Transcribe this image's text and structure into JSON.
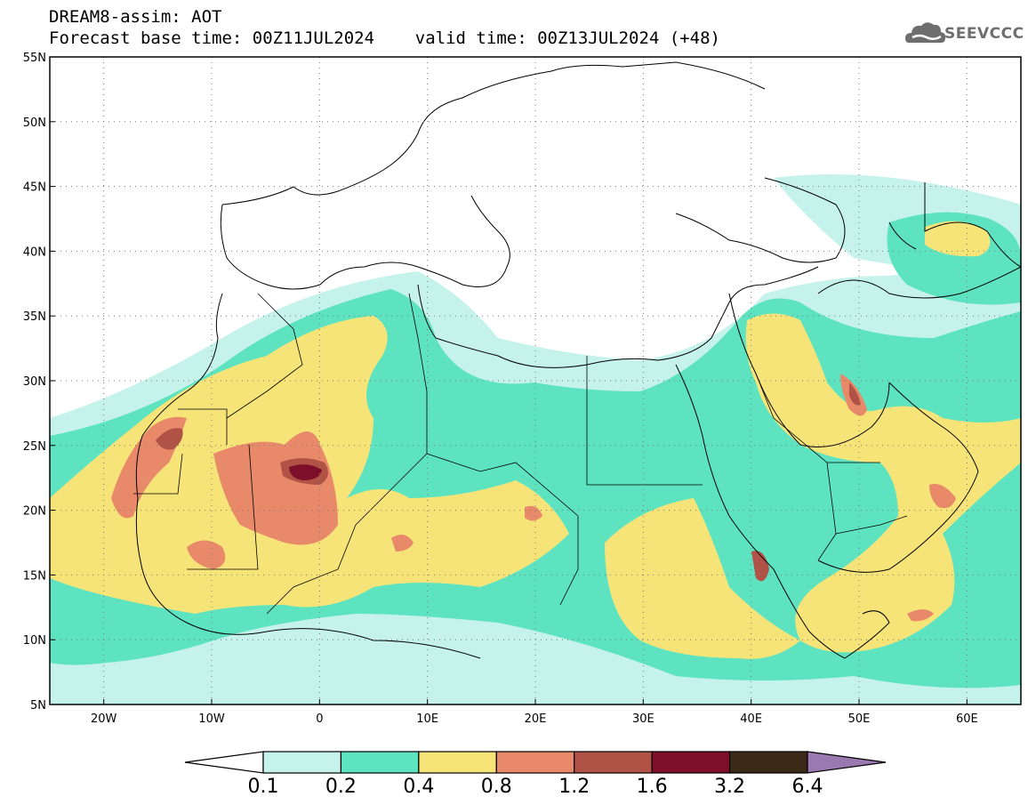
{
  "header": {
    "title": "DREAM8-assim: AOT",
    "subtitle": "Forecast base time: 00Z11JUL2024    valid time: 00Z13JUL2024 (+48)",
    "logo_text": "SEEVCCC"
  },
  "map": {
    "lon_range": [
      -25,
      65
    ],
    "lat_range": [
      5,
      55
    ],
    "lon_ticks": [
      "20W",
      "10W",
      "0",
      "10E",
      "20E",
      "30E",
      "40E",
      "50E",
      "60E"
    ],
    "lat_ticks": [
      "55N",
      "50N",
      "45N",
      "40N",
      "35N",
      "30N",
      "25N",
      "20N",
      "15N",
      "10N",
      "5N"
    ],
    "grid": "dotted"
  },
  "colorbar": {
    "labels": [
      "0.1",
      "0.2",
      "0.4",
      "0.8",
      "1.2",
      "1.6",
      "3.2",
      "6.4"
    ],
    "colors": [
      "#c5f2ea",
      "#5ee3c0",
      "#f7e479",
      "#e8896a",
      "#b05346",
      "#7d0f2a",
      "#3c2a18",
      "#9a78b0"
    ]
  }
}
